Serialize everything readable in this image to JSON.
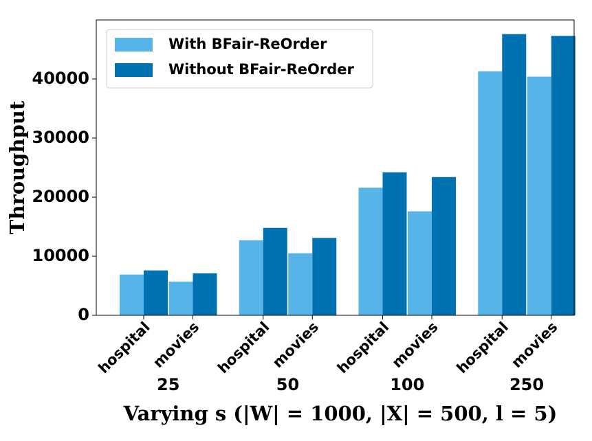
{
  "chart_data": {
    "type": "grouped-bar",
    "x_label": "Varying s (|W| = 1000, |X| = 500, l = 5)",
    "y_label": "Throughput",
    "groups": [
      "25",
      "50",
      "100",
      "250"
    ],
    "categories": [
      "hospital",
      "movies",
      "hospital",
      "movies",
      "hospital",
      "movies",
      "hospital",
      "movies"
    ],
    "series": [
      {
        "name": "With BFair-ReOrder",
        "color": "#56b4e9",
        "values": [
          6900,
          5700,
          12700,
          10500,
          21600,
          17600,
          41300,
          40400
        ]
      },
      {
        "name": "Without BFair-ReOrder",
        "color": "#0072b2",
        "values": [
          7600,
          7100,
          14800,
          13100,
          24200,
          23400,
          47600,
          47300
        ]
      }
    ],
    "ylim": [
      0,
      50000
    ],
    "yticks": [
      0,
      10000,
      20000,
      30000,
      40000
    ],
    "legend": "upper left"
  }
}
